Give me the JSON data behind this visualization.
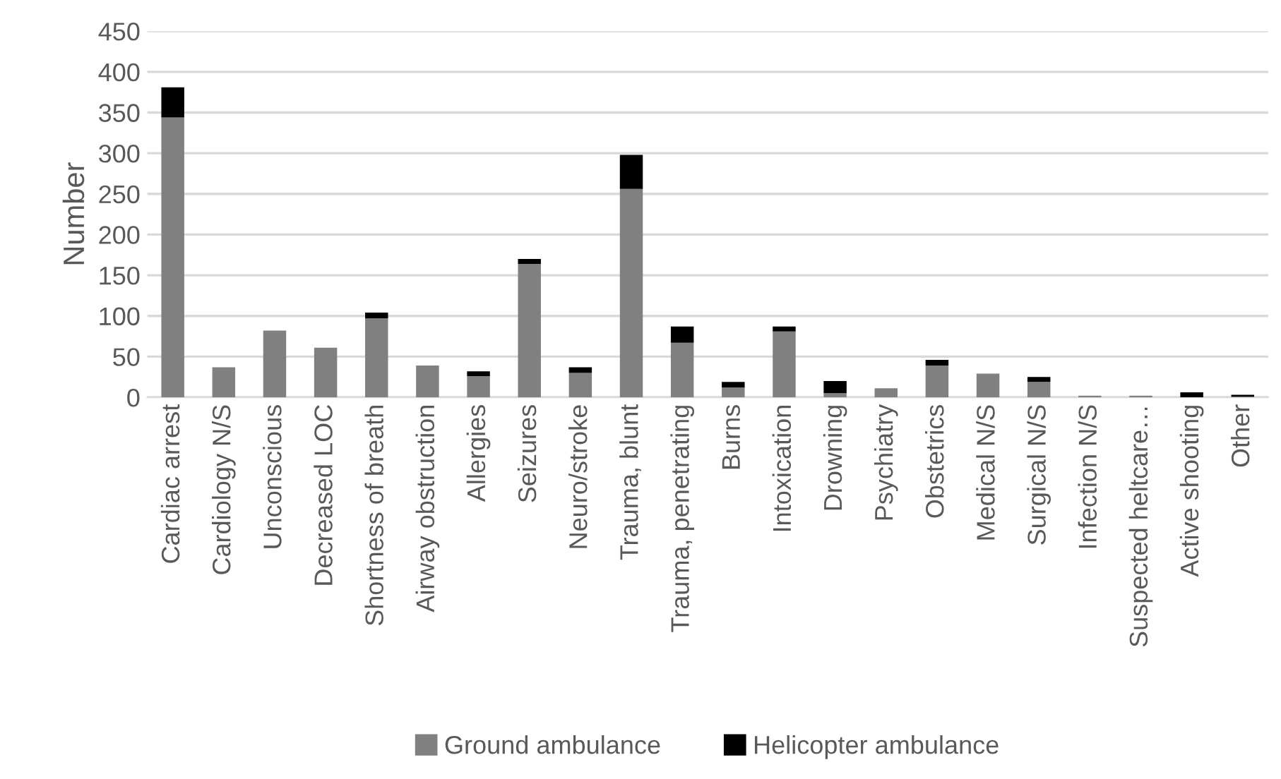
{
  "chart_data": {
    "type": "bar",
    "stacked": true,
    "ylabel": "Number",
    "categories": [
      "Cardiac arrest",
      "Cardiology N/S",
      "Unconscious",
      "Decreased LOC",
      "Shortness of breath",
      "Airway obstruction",
      "Allergies",
      "Seizures",
      "Neuro/stroke",
      "Trauma, blunt",
      "Trauma, penetrating",
      "Burns",
      "Intoxication",
      "Drowning",
      "Psychiatry",
      "Obstetrics",
      "Medical N/S",
      "Surgical N/S",
      "Infection N/S",
      "Suspected heltcare…",
      "Active shooting",
      "Other"
    ],
    "series": [
      {
        "name": "Ground ambulance",
        "color": "#808080",
        "values": [
          344,
          37,
          82,
          61,
          97,
          39,
          26,
          164,
          30,
          256,
          67,
          12,
          81,
          5,
          11,
          39,
          29,
          19,
          2,
          2,
          0,
          1
        ]
      },
      {
        "name": "Helicopter ambulance",
        "color": "#000000",
        "values": [
          37,
          0,
          0,
          0,
          7,
          0,
          6,
          6,
          7,
          42,
          20,
          7,
          6,
          15,
          0,
          7,
          0,
          6,
          0,
          0,
          6,
          2
        ]
      }
    ],
    "ylim": [
      0,
      450
    ],
    "yticks": [
      0,
      50,
      100,
      150,
      200,
      250,
      300,
      350,
      400,
      450
    ],
    "grid": "y",
    "legend": "bottom"
  }
}
